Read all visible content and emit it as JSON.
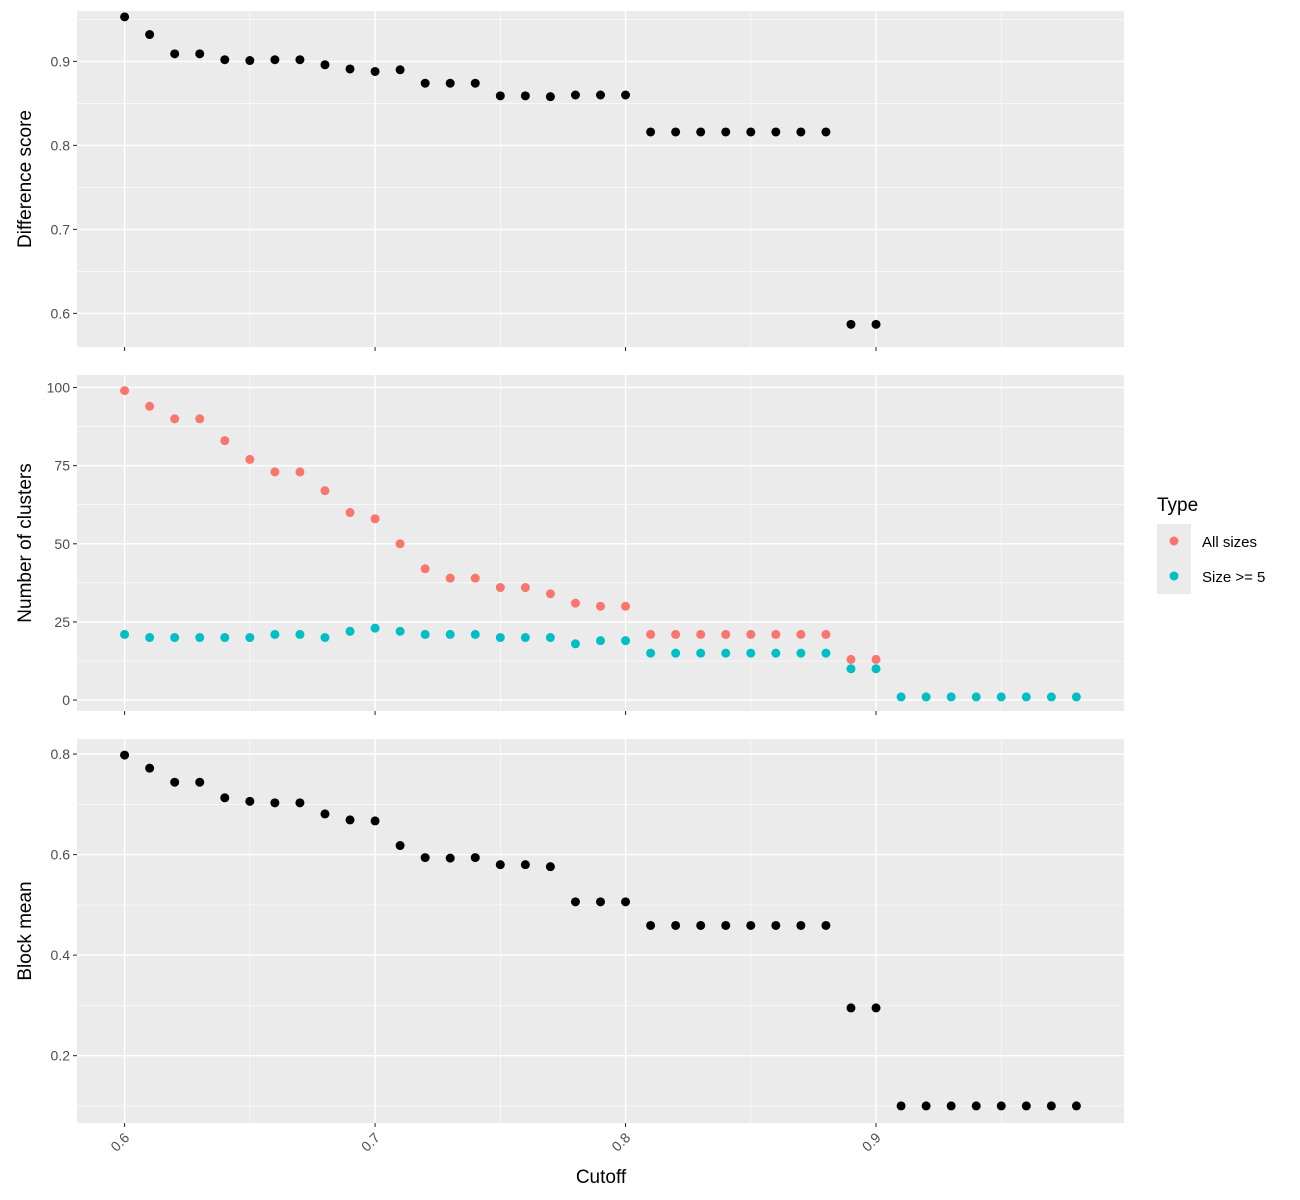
{
  "chart_data": [
    {
      "type": "scatter",
      "ylabel": "Difference score",
      "xlabel": "",
      "xlim": [
        0.581,
        0.999
      ],
      "ylim": [
        0.56,
        0.96
      ],
      "yticks": [
        0.6,
        0.7,
        0.8,
        0.9
      ],
      "ytick_labels": [
        "0.6",
        "0.7",
        "0.8",
        "0.9"
      ],
      "series": [
        {
          "color": "#000000",
          "x": [
            0.6,
            0.61,
            0.62,
            0.63,
            0.64,
            0.65,
            0.66,
            0.67,
            0.68,
            0.69,
            0.7,
            0.71,
            0.72,
            0.73,
            0.74,
            0.75,
            0.76,
            0.77,
            0.78,
            0.79,
            0.8,
            0.81,
            0.82,
            0.83,
            0.84,
            0.85,
            0.86,
            0.87,
            0.88,
            0.89,
            0.9
          ],
          "y": [
            0.953,
            0.932,
            0.909,
            0.909,
            0.902,
            0.901,
            0.902,
            0.902,
            0.896,
            0.891,
            0.888,
            0.89,
            0.874,
            0.874,
            0.874,
            0.859,
            0.859,
            0.858,
            0.86,
            0.86,
            0.86,
            0.816,
            0.816,
            0.816,
            0.816,
            0.816,
            0.816,
            0.816,
            0.816,
            0.587,
            0.587
          ]
        }
      ]
    },
    {
      "type": "scatter",
      "ylabel": "Number of clusters",
      "xlabel": "",
      "xlim": [
        0.581,
        0.999
      ],
      "ylim": [
        -3.5,
        104
      ],
      "yticks": [
        0,
        25,
        50,
        75,
        100
      ],
      "ytick_labels": [
        "0",
        "25",
        "50",
        "75",
        "100"
      ],
      "legend": {
        "title": "Type",
        "position": "right"
      },
      "series": [
        {
          "name": "All sizes",
          "color": "#F8766D",
          "x": [
            0.6,
            0.61,
            0.62,
            0.63,
            0.64,
            0.65,
            0.66,
            0.67,
            0.68,
            0.69,
            0.7,
            0.71,
            0.72,
            0.73,
            0.74,
            0.75,
            0.76,
            0.77,
            0.78,
            0.79,
            0.8,
            0.81,
            0.82,
            0.83,
            0.84,
            0.85,
            0.86,
            0.87,
            0.88,
            0.89,
            0.9
          ],
          "y": [
            99,
            94,
            90,
            90,
            83,
            77,
            73,
            73,
            67,
            60,
            58,
            50,
            42,
            39,
            39,
            36,
            36,
            34,
            31,
            30,
            30,
            21,
            21,
            21,
            21,
            21,
            21,
            21,
            21,
            13,
            13
          ]
        },
        {
          "name": "Size >= 5",
          "color": "#00BFC4",
          "x": [
            0.6,
            0.61,
            0.62,
            0.63,
            0.64,
            0.65,
            0.66,
            0.67,
            0.68,
            0.69,
            0.7,
            0.71,
            0.72,
            0.73,
            0.74,
            0.75,
            0.76,
            0.77,
            0.78,
            0.79,
            0.8,
            0.81,
            0.82,
            0.83,
            0.84,
            0.85,
            0.86,
            0.87,
            0.88,
            0.89,
            0.9,
            0.91,
            0.92,
            0.93,
            0.94,
            0.95,
            0.96,
            0.97,
            0.98
          ],
          "y": [
            21,
            20,
            20,
            20,
            20,
            20,
            21,
            21,
            20,
            22,
            23,
            22,
            21,
            21,
            21,
            20,
            20,
            20,
            18,
            19,
            19,
            15,
            15,
            15,
            15,
            15,
            15,
            15,
            15,
            10,
            10,
            1,
            1,
            1,
            1,
            1,
            1,
            1,
            1
          ]
        }
      ]
    },
    {
      "type": "scatter",
      "ylabel": "Block mean",
      "xlabel": "Cutoff",
      "xlim": [
        0.581,
        0.999
      ],
      "ylim": [
        0.066,
        0.83
      ],
      "yticks": [
        0.2,
        0.4,
        0.6,
        0.8
      ],
      "ytick_labels": [
        "0.2",
        "0.4",
        "0.6",
        "0.8"
      ],
      "xticks": [
        0.6,
        0.7,
        0.8,
        0.9
      ],
      "xtick_labels": [
        "0.6",
        "0.7",
        "0.8",
        "0.9"
      ],
      "series": [
        {
          "color": "#000000",
          "x": [
            0.6,
            0.61,
            0.62,
            0.63,
            0.64,
            0.65,
            0.66,
            0.67,
            0.68,
            0.69,
            0.7,
            0.71,
            0.72,
            0.73,
            0.74,
            0.75,
            0.76,
            0.77,
            0.78,
            0.79,
            0.8,
            0.81,
            0.82,
            0.83,
            0.84,
            0.85,
            0.86,
            0.87,
            0.88,
            0.89,
            0.9,
            0.91,
            0.92,
            0.93,
            0.94,
            0.95,
            0.96,
            0.97,
            0.98
          ],
          "y": [
            0.798,
            0.772,
            0.744,
            0.744,
            0.713,
            0.706,
            0.703,
            0.703,
            0.681,
            0.669,
            0.667,
            0.618,
            0.594,
            0.593,
            0.594,
            0.58,
            0.58,
            0.576,
            0.506,
            0.506,
            0.506,
            0.459,
            0.459,
            0.459,
            0.459,
            0.459,
            0.459,
            0.459,
            0.459,
            0.295,
            0.295,
            0.1,
            0.1,
            0.1,
            0.1,
            0.1,
            0.1,
            0.1,
            0.1
          ]
        }
      ]
    }
  ],
  "x_axis": {
    "title": "Cutoff",
    "ticks": [
      0.6,
      0.7,
      0.8,
      0.9
    ],
    "tick_labels": [
      "0.6",
      "0.7",
      "0.8",
      "0.9"
    ]
  },
  "legend": {
    "title": "Type",
    "entries": [
      {
        "label": "All sizes",
        "color": "#F8766D"
      },
      {
        "label": "Size >= 5",
        "color": "#00BFC4"
      }
    ]
  },
  "colors": {
    "panel_background": "#EBEBEB",
    "grid_major": "#FFFFFF",
    "point_default": "#000000"
  }
}
